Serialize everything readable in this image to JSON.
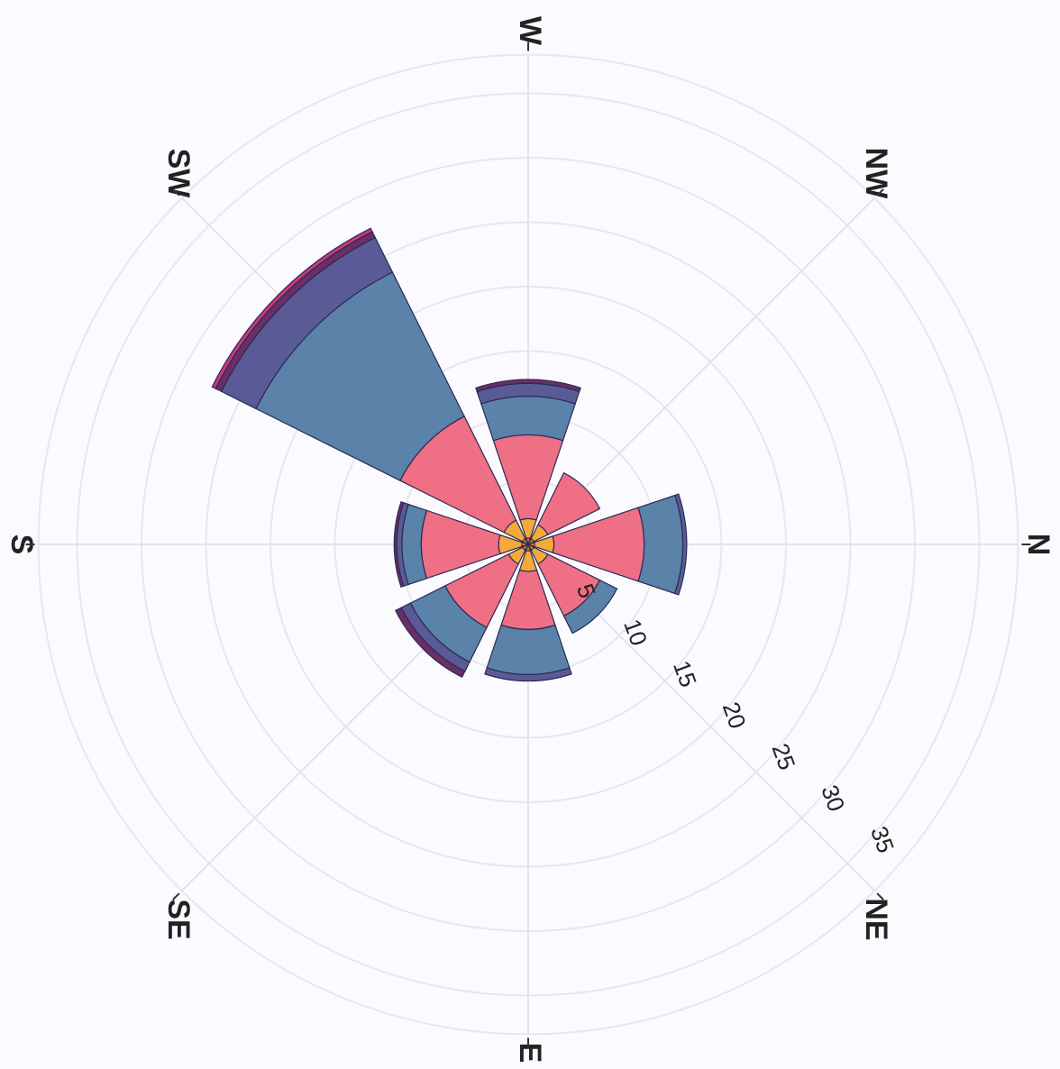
{
  "chart_data": {
    "type": "windrose",
    "directions": [
      "N",
      "NE",
      "E",
      "SE",
      "S",
      "SW",
      "W",
      "NW"
    ],
    "radial_ticks": [
      "5",
      "10",
      "15",
      "20",
      "25",
      "30",
      "35"
    ],
    "radial_values": [
      5,
      10,
      15,
      20,
      25,
      30,
      35
    ],
    "rmax": 38,
    "series": [
      {
        "color": "#e87f3a",
        "values": [
          0.5,
          0.5,
          0.5,
          0.5,
          0.5,
          0.5,
          0.5,
          0.5
        ]
      },
      {
        "color": "#f4a93a",
        "values": [
          1.5,
          1.2,
          1.6,
          1.2,
          1.8,
          1.6,
          1.5,
          1.2
        ]
      },
      {
        "color": "#ef6f85",
        "values": [
          7.0,
          4.5,
          4.5,
          5.5,
          6.0,
          9.0,
          6.5,
          4.5
        ]
      },
      {
        "color": "#5b82a8",
        "values": [
          3.0,
          1.5,
          3.5,
          3.0,
          1.5,
          12.5,
          3.0,
          0
        ]
      },
      {
        "color": "#5a5b96",
        "values": [
          0.3,
          0,
          0.5,
          0.8,
          0.4,
          3.0,
          1.0,
          0
        ]
      },
      {
        "color": "#6b2f66",
        "values": [
          0,
          0,
          0,
          0.5,
          0.2,
          0.5,
          0.3,
          0
        ]
      },
      {
        "color": "#c8387a",
        "values": [
          0,
          0,
          0,
          0,
          0,
          0.3,
          0,
          0
        ]
      }
    ],
    "grid": true,
    "legend": false
  }
}
